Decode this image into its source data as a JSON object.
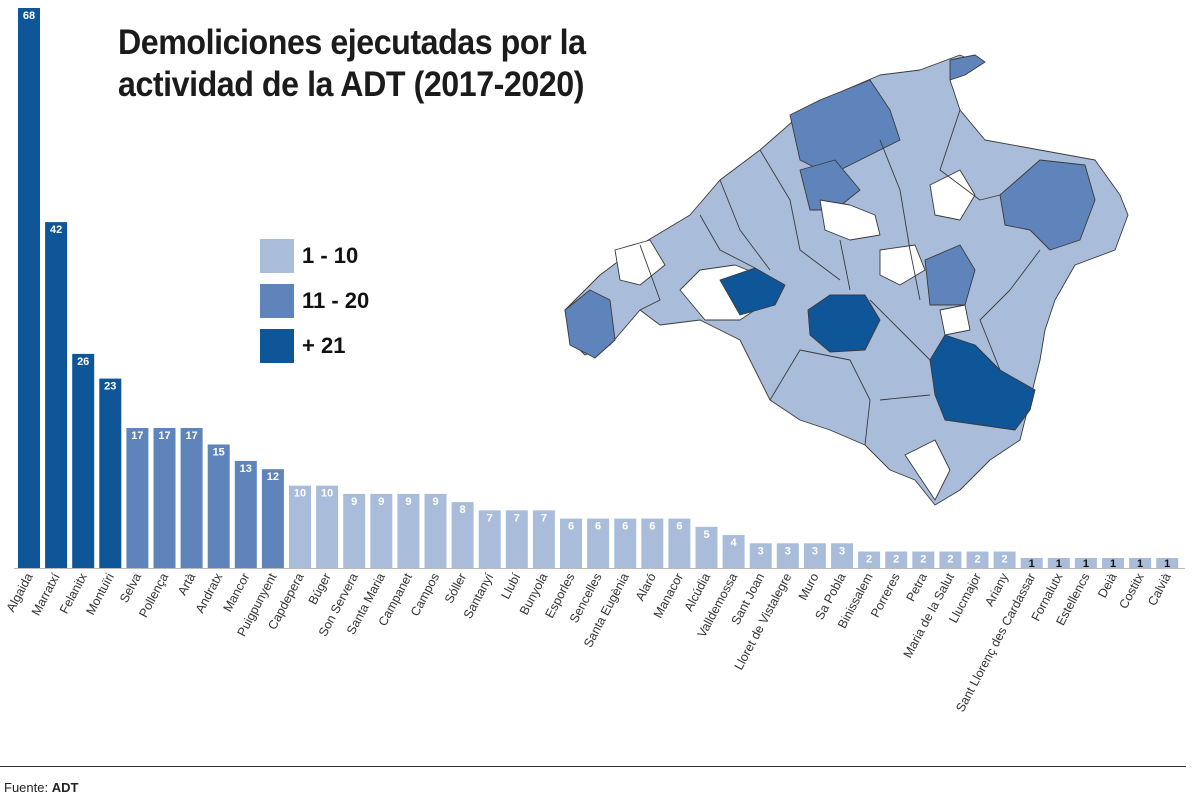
{
  "title": "Demoliciones ejecutadas por la actividad de la ADT (2017-2020)",
  "source_label": "Fuente:",
  "source_value": "ADT",
  "colors": {
    "low": "#a9bddb",
    "mid": "#5e84bb",
    "high": "#0f5699",
    "map_none": "#ffffff",
    "border": "#3a3a3a"
  },
  "legend": [
    {
      "label": "1 - 10",
      "color": "#a9bddb"
    },
    {
      "label": "11 - 20",
      "color": "#5e84bb"
    },
    {
      "label": "+ 21",
      "color": "#0f5699"
    }
  ],
  "chart_data": {
    "type": "bar",
    "title": "Demoliciones ejecutadas por la actividad de la ADT (2017-2020)",
    "xlabel": "",
    "ylabel": "",
    "ylim": [
      0,
      68
    ],
    "grid": false,
    "legend_position": "center-left",
    "categories": [
      "Algaida",
      "Marratxí",
      "Felanitx",
      "Montuïri",
      "Selva",
      "Pollença",
      "Artà",
      "Andratx",
      "Mancor",
      "Puigpunyent",
      "Capdepera",
      "Búger",
      "Son Servera",
      "Santa Maria",
      "Campanet",
      "Campos",
      "Sóller",
      "Santanyí",
      "Llubí",
      "Bunyola",
      "Esporles",
      "Sencelles",
      "Santa Eugènia",
      "Alaró",
      "Manacor",
      "Alcúdia",
      "Valldemossa",
      "Sant Joan",
      "Lloret de Vistalegre",
      "Muro",
      "Sa Pobla",
      "Binissalem",
      "Porreres",
      "Petra",
      "Maria de la Salut",
      "Llucmajor",
      "Ariany",
      "Sant Llorenç des Cardassar",
      "Fornalutx",
      "Estellencs",
      "Deià",
      "Costitx",
      "Calvià"
    ],
    "values": [
      68,
      42,
      26,
      23,
      17,
      17,
      17,
      15,
      13,
      12,
      10,
      10,
      9,
      9,
      9,
      9,
      8,
      7,
      7,
      7,
      6,
      6,
      6,
      6,
      6,
      5,
      4,
      3,
      3,
      3,
      3,
      2,
      2,
      2,
      2,
      2,
      2,
      1,
      1,
      1,
      1,
      1,
      1
    ]
  }
}
